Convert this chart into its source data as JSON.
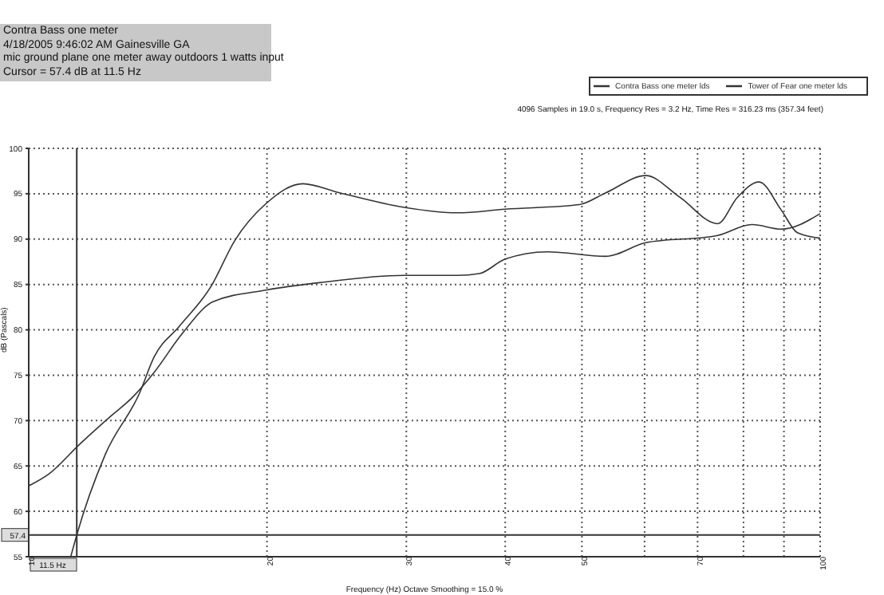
{
  "chart_data": {
    "type": "line",
    "title": "Contra Bass one meter",
    "subtitle": "4096 Samples in 19.0 s, Frequency Res = 3.2 Hz, Time Res = 316.23 ms (357.34 feet)",
    "annotations": [
      "4/18/2005 9:46:02 AM    Gainesville GA",
      "mic ground plane one meter away outdoors 1 watts input",
      "Cursor = 57.4 dB at 11.5 Hz"
    ],
    "xlabel": "Frequency (Hz) Octave Smoothing = 15.0 %",
    "ylabel": "dB (Pascals)",
    "series": [
      {
        "name": "Tower of Fear one meter lds",
        "color": "#333333",
        "x": [
          10,
          10.6,
          11.6,
          12.7,
          13.5,
          14.4,
          15.6,
          17.1,
          20,
          23.3,
          29.8,
          34.8,
          37.1,
          40,
          45.2,
          53.6,
          60.2,
          74.2,
          82,
          89.3,
          100
        ],
        "values": [
          62.8,
          64.1,
          67.4,
          70.5,
          72.5,
          75.3,
          79.5,
          83.1,
          84.4,
          85.2,
          86,
          86,
          86.2,
          87.8,
          88.6,
          88.1,
          89.6,
          90.4,
          91.6,
          91.1,
          92.8
        ]
      },
      {
        "name": "Contra Bass one meter lds",
        "color": "#333333",
        "x": [
          11.3,
          11.5,
          12.5,
          13.8,
          14.4,
          15.5,
          17,
          18.2,
          20,
          22.2,
          24.7,
          29.8,
          34.8,
          40,
          49.6,
          53.6,
          60.2,
          66.5,
          74.2,
          78.6,
          83.7,
          89.3,
          93.6,
          100
        ],
        "values": [
          55,
          57.4,
          66.3,
          73,
          77,
          80.4,
          84.8,
          89.8,
          94,
          96.1,
          95.1,
          93.5,
          92.9,
          93.3,
          93.8,
          95.1,
          97,
          94.6,
          91.7,
          94.6,
          96.3,
          93.2,
          90.7,
          90.1
        ]
      }
    ],
    "log": "x",
    "xlim": [
      10,
      100
    ],
    "xticks": [
      10,
      20,
      30,
      40,
      50,
      {
        "value": 60,
        "label": null
      },
      70,
      {
        "value": 80,
        "label": null
      },
      {
        "value": 90,
        "label": null
      },
      100
    ],
    "ylim": [
      55,
      100
    ],
    "yticks": [
      55,
      60,
      65,
      70,
      75,
      80,
      85,
      90,
      95,
      100
    ],
    "grid": true,
    "legend": "top right",
    "marker": "none",
    "line_style": "solid",
    "ref_lines": [
      {
        "axis": "y",
        "value": 57.4,
        "label": "57.4"
      },
      {
        "axis": "x",
        "value": 11.5,
        "label": "11.5 Hz"
      }
    ]
  }
}
